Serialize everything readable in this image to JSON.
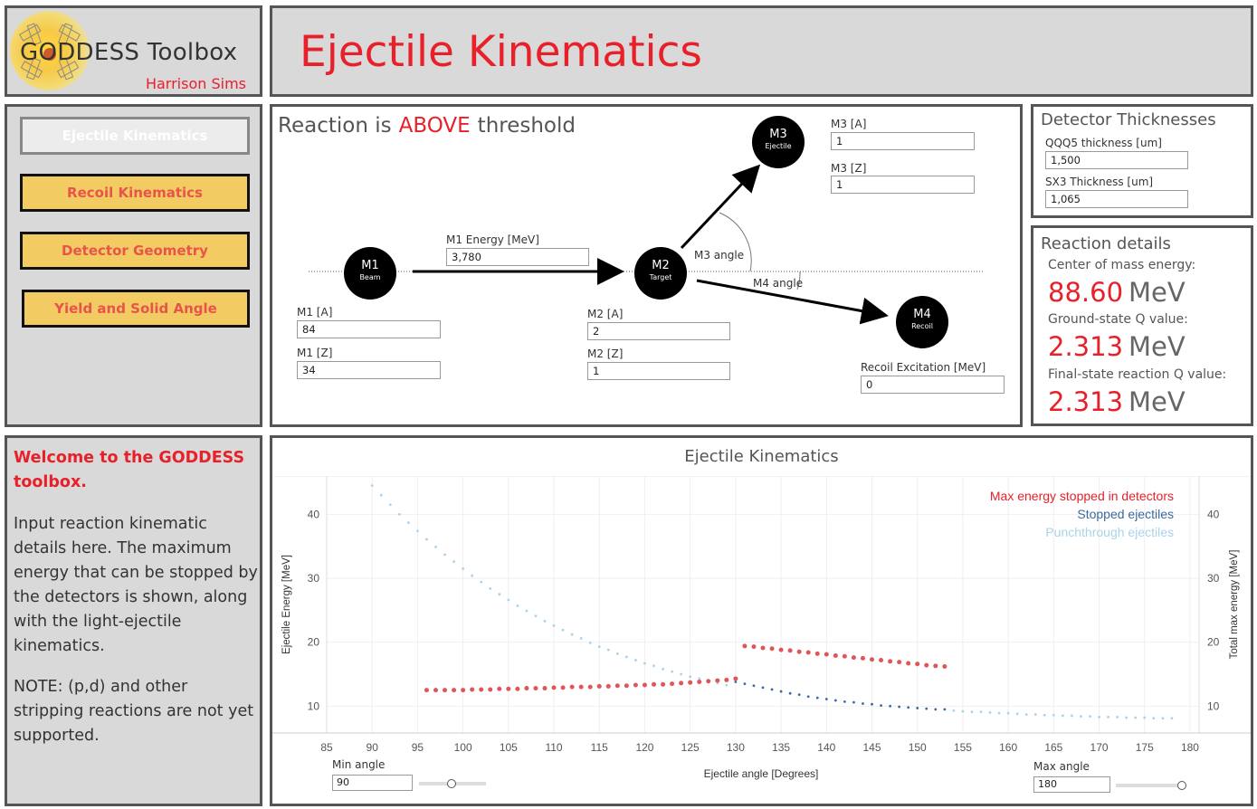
{
  "logo": {
    "title": "GODDESS Toolbox",
    "author": "Harrison Sims"
  },
  "page_title": "Ejectile Kinematics",
  "nav": {
    "items": [
      {
        "label": "Ejectile Kinematics",
        "active": true
      },
      {
        "label": "Recoil Kinematics",
        "active": false
      },
      {
        "label": "Detector Geometry",
        "active": false
      },
      {
        "label": "Yield and Solid Angle",
        "active": false
      }
    ]
  },
  "welcome": {
    "heading": "Welcome to the GODDESS toolbox.",
    "body": "Input reaction kinematic details here. The maximum energy that can be stopped by the detectors is shown, along with the light-ejectile kinematics.",
    "note": "NOTE: (p,d) and other stripping reactions are not yet supported."
  },
  "reaction": {
    "status_prefix": "Reaction is",
    "status_word": "ABOVE",
    "status_suffix": "threshold",
    "m1_energy_label": "M1 Energy [MeV]",
    "m1_energy_value": "3,780",
    "m1_a_label": "M1 [A]",
    "m1_a_value": "84",
    "m1_z_label": "M1 [Z]",
    "m1_z_value": "34",
    "m2_a_label": "M2 [A]",
    "m2_a_value": "2",
    "m2_z_label": "M2 [Z]",
    "m2_z_value": "1",
    "m3_a_label": "M3 [A]",
    "m3_a_value": "1",
    "m3_z_label": "M3 [Z]",
    "m3_z_value": "1",
    "recoil_exc_label": "Recoil Excitation [MeV]",
    "recoil_exc_value": "0",
    "m3_angle_label": "M3 angle",
    "m4_angle_label": "M4 angle",
    "nodes": {
      "m1": {
        "name": "M1",
        "sub": "Beam"
      },
      "m2": {
        "name": "M2",
        "sub": "Target"
      },
      "m3": {
        "name": "M3",
        "sub": "Ejectile"
      },
      "m4": {
        "name": "M4",
        "sub": "Recoil"
      }
    }
  },
  "thickness": {
    "title": "Detector Thicknesses",
    "qqq5_label": "QQQ5 thickness [um]",
    "qqq5_value": "1,500",
    "sx3_label": "SX3 Thickness [um]",
    "sx3_value": "1,065"
  },
  "details": {
    "title": "Reaction details",
    "cm_label": "Center of mass energy:",
    "cm_value": "88.60",
    "cm_unit": "MeV",
    "gsq_label": "Ground-state Q value:",
    "gsq_value": "2.313",
    "gsq_unit": "MeV",
    "fsq_label": "Final-state reaction Q value:",
    "fsq_value": "2.313",
    "fsq_unit": "MeV"
  },
  "controls": {
    "min_angle_label": "Min angle",
    "min_angle_value": "90",
    "max_angle_label": "Max angle",
    "max_angle_value": "180"
  },
  "colors": {
    "red": "#e8202a",
    "red_points": "#e05558",
    "stopped": "#3d6a9e",
    "punch": "#a9d3ea",
    "yellow": "#f2cc63"
  },
  "chart_data": {
    "type": "scatter",
    "title": "Ejectile Kinematics",
    "xlabel": "Ejectile angle [Degrees]",
    "ylabel": "Ejectile Energy [MeV]",
    "y2label": "Total max energy [MeV]",
    "xlim": [
      85,
      181
    ],
    "ylim": [
      5.8,
      46
    ],
    "xticks": [
      85,
      90,
      95,
      100,
      105,
      110,
      115,
      120,
      125,
      130,
      135,
      140,
      145,
      150,
      155,
      160,
      165,
      170,
      175,
      180
    ],
    "yticks": [
      10,
      20,
      30,
      40
    ],
    "legend": [
      "Max energy stopped in detectors",
      "Stopped ejectiles",
      "Punchthrough ejectiles"
    ],
    "legend_position": "top-right",
    "series": [
      {
        "name": "Max energy stopped in detectors",
        "color": "#e05558",
        "size": 2.5,
        "x": [
          96,
          97,
          98,
          99,
          100,
          101,
          102,
          103,
          104,
          105,
          106,
          107,
          108,
          109,
          110,
          111,
          112,
          113,
          114,
          115,
          116,
          117,
          118,
          119,
          120,
          121,
          122,
          123,
          124,
          125,
          126,
          127,
          128,
          129,
          130,
          131,
          132,
          133,
          134,
          135,
          136,
          137,
          138,
          139,
          140,
          141,
          142,
          143,
          144,
          145,
          146,
          147,
          148,
          149,
          150,
          151,
          152,
          153
        ],
        "y": [
          12.5,
          12.5,
          12.5,
          12.5,
          12.5,
          12.6,
          12.6,
          12.6,
          12.7,
          12.7,
          12.7,
          12.8,
          12.8,
          12.8,
          12.9,
          12.9,
          13.0,
          13.0,
          13.0,
          13.1,
          13.1,
          13.2,
          13.2,
          13.3,
          13.3,
          13.4,
          13.4,
          13.5,
          13.6,
          13.7,
          13.8,
          13.9,
          14.0,
          14.1,
          14.3,
          19.4,
          19.3,
          19.1,
          19.0,
          18.8,
          18.7,
          18.5,
          18.4,
          18.2,
          18.1,
          17.9,
          17.8,
          17.6,
          17.5,
          17.3,
          17.2,
          17.0,
          16.9,
          16.7,
          16.6,
          16.4,
          16.3,
          16.2
        ]
      },
      {
        "name": "Stopped ejectiles",
        "color": "#3d6a9e",
        "size": 1.4,
        "x": [
          130,
          131,
          132,
          133,
          134,
          135,
          136,
          137,
          138,
          139,
          140,
          141,
          142,
          143,
          144,
          145,
          146,
          147,
          148,
          149,
          150,
          151,
          152,
          153
        ],
        "y": [
          13.8,
          13.5,
          13.2,
          12.9,
          12.6,
          12.3,
          12.0,
          11.8,
          11.5,
          11.3,
          11.1,
          10.9,
          10.7,
          10.6,
          10.4,
          10.3,
          10.1,
          10.0,
          9.9,
          9.8,
          9.7,
          9.6,
          9.5,
          9.5
        ]
      },
      {
        "name": "Punchthrough ejectiles",
        "color": "#a9d3ea",
        "size": 1.4,
        "x": [
          90,
          91,
          92,
          93,
          94,
          95,
          96,
          97,
          98,
          99,
          100,
          101,
          102,
          103,
          104,
          105,
          106,
          107,
          108,
          109,
          110,
          111,
          112,
          113,
          114,
          115,
          116,
          117,
          118,
          119,
          120,
          121,
          122,
          123,
          124,
          125,
          126,
          127,
          128,
          129,
          154,
          155,
          156,
          157,
          158,
          159,
          160,
          161,
          162,
          163,
          164,
          165,
          166,
          167,
          168,
          169,
          170,
          171,
          172,
          173,
          174,
          175,
          176,
          177,
          178
        ],
        "y": [
          44.5,
          43.0,
          41.5,
          40.0,
          38.7,
          37.4,
          36.1,
          34.9,
          33.7,
          32.6,
          31.5,
          30.4,
          29.4,
          28.4,
          27.5,
          26.6,
          25.7,
          24.9,
          24.1,
          23.3,
          22.6,
          21.9,
          21.2,
          20.6,
          19.9,
          19.3,
          18.8,
          18.2,
          17.7,
          17.2,
          16.7,
          16.3,
          15.8,
          15.4,
          15.0,
          14.6,
          14.3,
          13.9,
          13.6,
          13.3,
          9.3,
          9.2,
          9.1,
          9.1,
          9.0,
          8.9,
          8.9,
          8.8,
          8.7,
          8.7,
          8.6,
          8.6,
          8.5,
          8.5,
          8.4,
          8.4,
          8.3,
          8.3,
          8.3,
          8.2,
          8.2,
          8.2,
          8.1,
          8.1,
          8.1
        ]
      }
    ]
  }
}
